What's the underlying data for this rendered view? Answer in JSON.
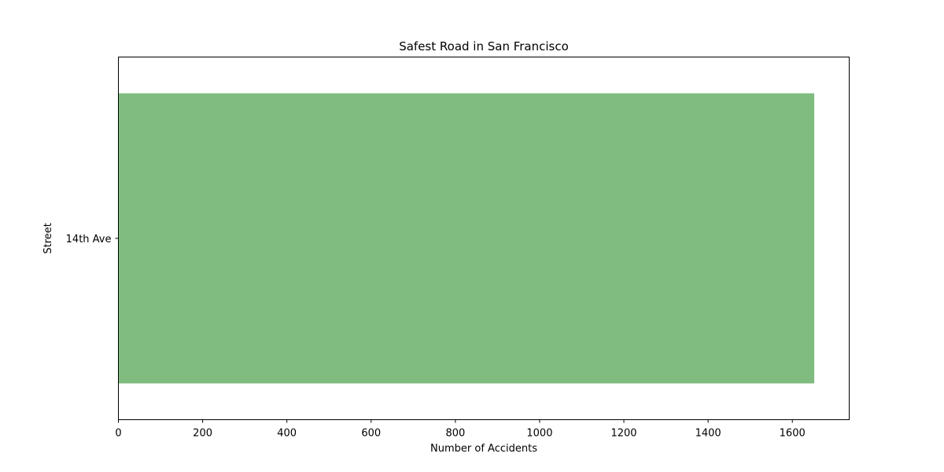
{
  "chart_data": {
    "type": "bar",
    "orientation": "horizontal",
    "title": "Safest Road in San Francisco",
    "xlabel": "Number of Accidents",
    "ylabel": "Street",
    "categories": [
      "14th Ave"
    ],
    "values": [
      1652
    ],
    "xlim": [
      0,
      1735
    ],
    "xticks": [
      0,
      200,
      400,
      600,
      800,
      1000,
      1200,
      1400,
      1600
    ],
    "grid": false,
    "legend": "none",
    "bar_color": "#80bb80"
  }
}
